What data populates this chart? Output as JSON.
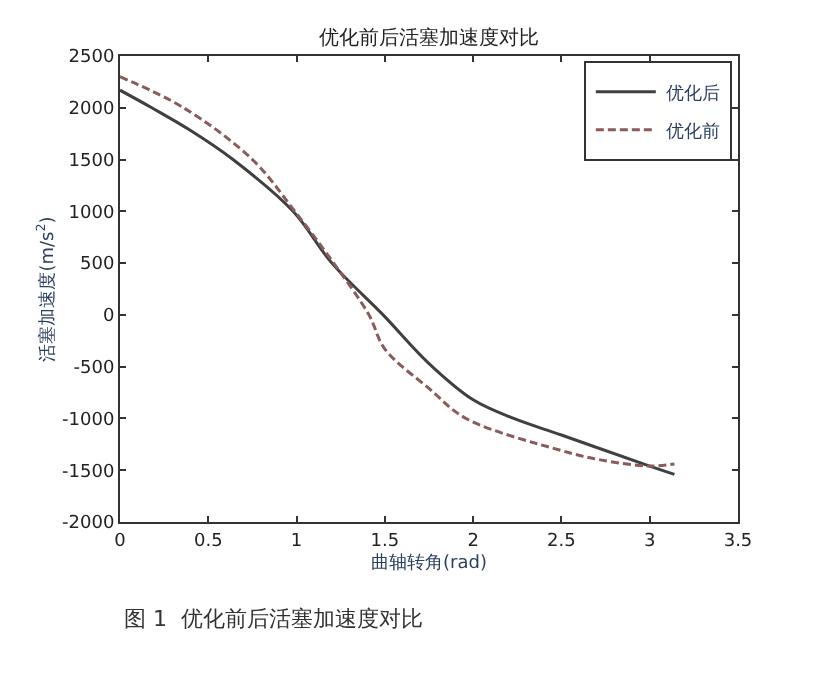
{
  "chart_data": {
    "type": "line",
    "title": "优化前后活塞加速度对比",
    "xlabel": "曲轴转角(rad)",
    "ylabel": "活塞加速度(m/s$^{2}$)",
    "xlim": [
      0,
      3.5
    ],
    "xticks": [
      0,
      0.5,
      1,
      1.5,
      2,
      2.5,
      3,
      3.5
    ],
    "ylim": [
      -2000,
      2500
    ],
    "yticks": [
      -2000,
      -1500,
      -1000,
      -500,
      0,
      500,
      1000,
      1500,
      2000,
      2500
    ],
    "legend": "top right",
    "annotations": [
      "图 1  优化前后活塞加速度对比"
    ],
    "series": [
      {
        "name": "优化后",
        "color": "#404040",
        "line_style": "solid",
        "x": [
          0,
          0.18,
          0.4,
          0.64,
          0.98,
          1.2,
          1.49,
          1.75,
          2.0,
          2.23,
          2.5,
          3.0,
          3.14
        ],
        "values": [
          2170,
          2000,
          1780,
          1500,
          1000,
          500,
          0,
          -470,
          -820,
          -1000,
          -1160,
          -1460,
          -1540
        ]
      },
      {
        "name": "优化前",
        "color": "#8b5a5a",
        "line_style": "dashed",
        "x": [
          0,
          0.36,
          0.75,
          0.99,
          1.21,
          1.41,
          1.5,
          1.75,
          1.96,
          2.5,
          2.72,
          3.0,
          3.14
        ],
        "values": [
          2300,
          2000,
          1500,
          1000,
          500,
          0,
          -330,
          -710,
          -1000,
          -1310,
          -1400,
          -1460,
          -1440
        ]
      }
    ]
  }
}
